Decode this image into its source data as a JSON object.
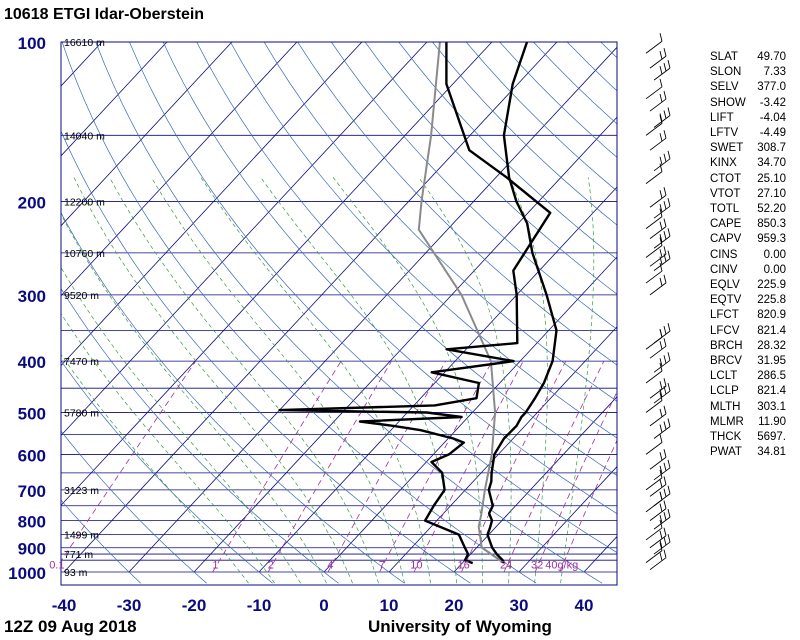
{
  "title": "10618 ETGI Idar-Oberstein",
  "footer": {
    "time": "12Z 09 Aug 2018",
    "source": "University of Wyoming"
  },
  "colors": {
    "isobar": "#0b0b80",
    "isotherm": "#0b0b80",
    "dry_adiabat": "#3a6ab8",
    "moist_adiabat": "#3a9a3a",
    "mixing_ratio": "#a030a0",
    "parcel": "#8a8a8a",
    "pressure_label": "#0b0b80"
  },
  "indices": [
    {
      "name": "SLAT",
      "value": "49.70"
    },
    {
      "name": "SLON",
      "value": "7.33"
    },
    {
      "name": "SELV",
      "value": "377.0"
    },
    {
      "name": "SHOW",
      "value": "-3.42"
    },
    {
      "name": "LIFT",
      "value": "-4.04"
    },
    {
      "name": "LFTV",
      "value": "-4.49"
    },
    {
      "name": "SWET",
      "value": "308.7"
    },
    {
      "name": "KINX",
      "value": "34.70"
    },
    {
      "name": "CTOT",
      "value": "25.10"
    },
    {
      "name": "VTOT",
      "value": "27.10"
    },
    {
      "name": "TOTL",
      "value": "52.20"
    },
    {
      "name": "CAPE",
      "value": "850.3"
    },
    {
      "name": "CAPV",
      "value": "959.3"
    },
    {
      "name": "CINS",
      "value": "0.00"
    },
    {
      "name": "CINV",
      "value": "0.00"
    },
    {
      "name": "EQLV",
      "value": "225.9"
    },
    {
      "name": "EQTV",
      "value": "225.8"
    },
    {
      "name": "LFCT",
      "value": "820.9"
    },
    {
      "name": "LFCV",
      "value": "821.4"
    },
    {
      "name": "BRCH",
      "value": "28.32"
    },
    {
      "name": "BRCV",
      "value": "31.95"
    },
    {
      "name": "LCLT",
      "value": "286.5"
    },
    {
      "name": "LCLP",
      "value": "821.4"
    },
    {
      "name": "MLTH",
      "value": "303.1"
    },
    {
      "name": "MLMR",
      "value": "11.90"
    },
    {
      "name": "THCK",
      "value": "5697."
    },
    {
      "name": "PWAT",
      "value": "34.81"
    }
  ],
  "chart_data": {
    "type": "line",
    "chart_kind": "Skew-T log-P sounding",
    "xlim": [
      -40,
      45
    ],
    "ylim_hPa": [
      1000,
      100
    ],
    "x_ticks": [
      "-40",
      "-30",
      "-20",
      "-10",
      "0",
      "10",
      "20",
      "30",
      "40"
    ],
    "x_tick_values": [
      -40,
      -30,
      -20,
      -10,
      0,
      10,
      20,
      30,
      40
    ],
    "pressure_ticks": [
      {
        "p": 100,
        "label": "100"
      },
      {
        "p": 200,
        "label": "200"
      },
      {
        "p": 300,
        "label": "300"
      },
      {
        "p": 400,
        "label": "400"
      },
      {
        "p": 500,
        "label": "500"
      },
      {
        "p": 600,
        "label": "600"
      },
      {
        "p": 700,
        "label": "700"
      },
      {
        "p": 800,
        "label": "800"
      },
      {
        "p": 900,
        "label": "900"
      },
      {
        "p": 1000,
        "label": "1000"
      }
    ],
    "height_labels": [
      {
        "p": 100,
        "label": "16610 m"
      },
      {
        "p": 150,
        "label": "14040 m"
      },
      {
        "p": 200,
        "label": "12200 m"
      },
      {
        "p": 250,
        "label": "10760 m"
      },
      {
        "p": 300,
        "label": "9520 m"
      },
      {
        "p": 400,
        "label": "7470 m"
      },
      {
        "p": 500,
        "label": "5780 m"
      },
      {
        "p": 700,
        "label": "3123 m"
      },
      {
        "p": 850,
        "label": "1499 m"
      },
      {
        "p": 925,
        "label": "771 m"
      },
      {
        "p": 1000,
        "label": "93 m"
      }
    ],
    "isobars": [
      100,
      150,
      200,
      250,
      300,
      350,
      400,
      450,
      500,
      550,
      600,
      650,
      700,
      750,
      800,
      850,
      900,
      925,
      950,
      1000
    ],
    "mixing_ratio_labels": [
      "0.1",
      "1",
      "2",
      "4",
      "7",
      "10",
      "16",
      "24",
      "32",
      "40g/kg"
    ],
    "mixing_ratio_values": [
      0.1,
      1,
      2,
      4,
      7,
      10,
      16,
      24,
      32,
      40
    ],
    "series": [
      {
        "role": "temperature",
        "points": [
          [
            962,
            26.4
          ],
          [
            950,
            25.8
          ],
          [
            925,
            24.0
          ],
          [
            900,
            22.4
          ],
          [
            850,
            19.8
          ],
          [
            825,
            19.2
          ],
          [
            800,
            18.5
          ],
          [
            775,
            17.0
          ],
          [
            750,
            16.5
          ],
          [
            700,
            13.6
          ],
          [
            675,
            12.8
          ],
          [
            650,
            11.6
          ],
          [
            600,
            9.4
          ],
          [
            560,
            8.6
          ],
          [
            530,
            8.7
          ],
          [
            510,
            8.2
          ],
          [
            500,
            8.2
          ],
          [
            470,
            7.6
          ],
          [
            440,
            6.8
          ],
          [
            400,
            5.0
          ],
          [
            350,
            1.2
          ],
          [
            300,
            -5.4
          ],
          [
            250,
            -13.6
          ],
          [
            220,
            -18.6
          ],
          [
            200,
            -23.4
          ],
          [
            180,
            -28.0
          ],
          [
            150,
            -34.8
          ],
          [
            120,
            -40.8
          ],
          [
            100,
            -44.6
          ]
        ]
      },
      {
        "role": "dewpoint",
        "points": [
          [
            962,
            21.6
          ],
          [
            950,
            20.0
          ],
          [
            925,
            19.6
          ],
          [
            900,
            18.2
          ],
          [
            850,
            15.4
          ],
          [
            800,
            8.2
          ],
          [
            750,
            7.4
          ],
          [
            700,
            6.8
          ],
          [
            650,
            4.0
          ],
          [
            620,
            0.8
          ],
          [
            600,
            2.4
          ],
          [
            570,
            3.0
          ],
          [
            560,
            0.8
          ],
          [
            540,
            -5.4
          ],
          [
            530,
            -10.2
          ],
          [
            520,
            -16.0
          ],
          [
            510,
            -1.0
          ],
          [
            500,
            -7.0
          ],
          [
            495,
            -30.0
          ],
          [
            485,
            -6.8
          ],
          [
            470,
            -1.4
          ],
          [
            440,
            -3.2
          ],
          [
            420,
            -12.0
          ],
          [
            400,
            -1.0
          ],
          [
            380,
            -13.0
          ],
          [
            370,
            -3.0
          ],
          [
            300,
            -10.0
          ],
          [
            270,
            -14.0
          ],
          [
            250,
            -14.8
          ],
          [
            210,
            -16.6
          ],
          [
            180,
            -28.4
          ],
          [
            160,
            -38.0
          ],
          [
            120,
            -51.0
          ],
          [
            100,
            -57.0
          ]
        ]
      },
      {
        "role": "parcel",
        "points": [
          [
            962,
            26.4
          ],
          [
            900,
            20.8
          ],
          [
            821,
            17.3
          ],
          [
            780,
            16.0
          ],
          [
            700,
            13.0
          ],
          [
            600,
            9.0
          ],
          [
            500,
            3.5
          ],
          [
            400,
            -4.5
          ],
          [
            300,
            -18.5
          ],
          [
            226,
            -34.4
          ],
          [
            200,
            -38.0
          ],
          [
            150,
            -46.0
          ],
          [
            100,
            -58.0
          ]
        ]
      }
    ]
  }
}
